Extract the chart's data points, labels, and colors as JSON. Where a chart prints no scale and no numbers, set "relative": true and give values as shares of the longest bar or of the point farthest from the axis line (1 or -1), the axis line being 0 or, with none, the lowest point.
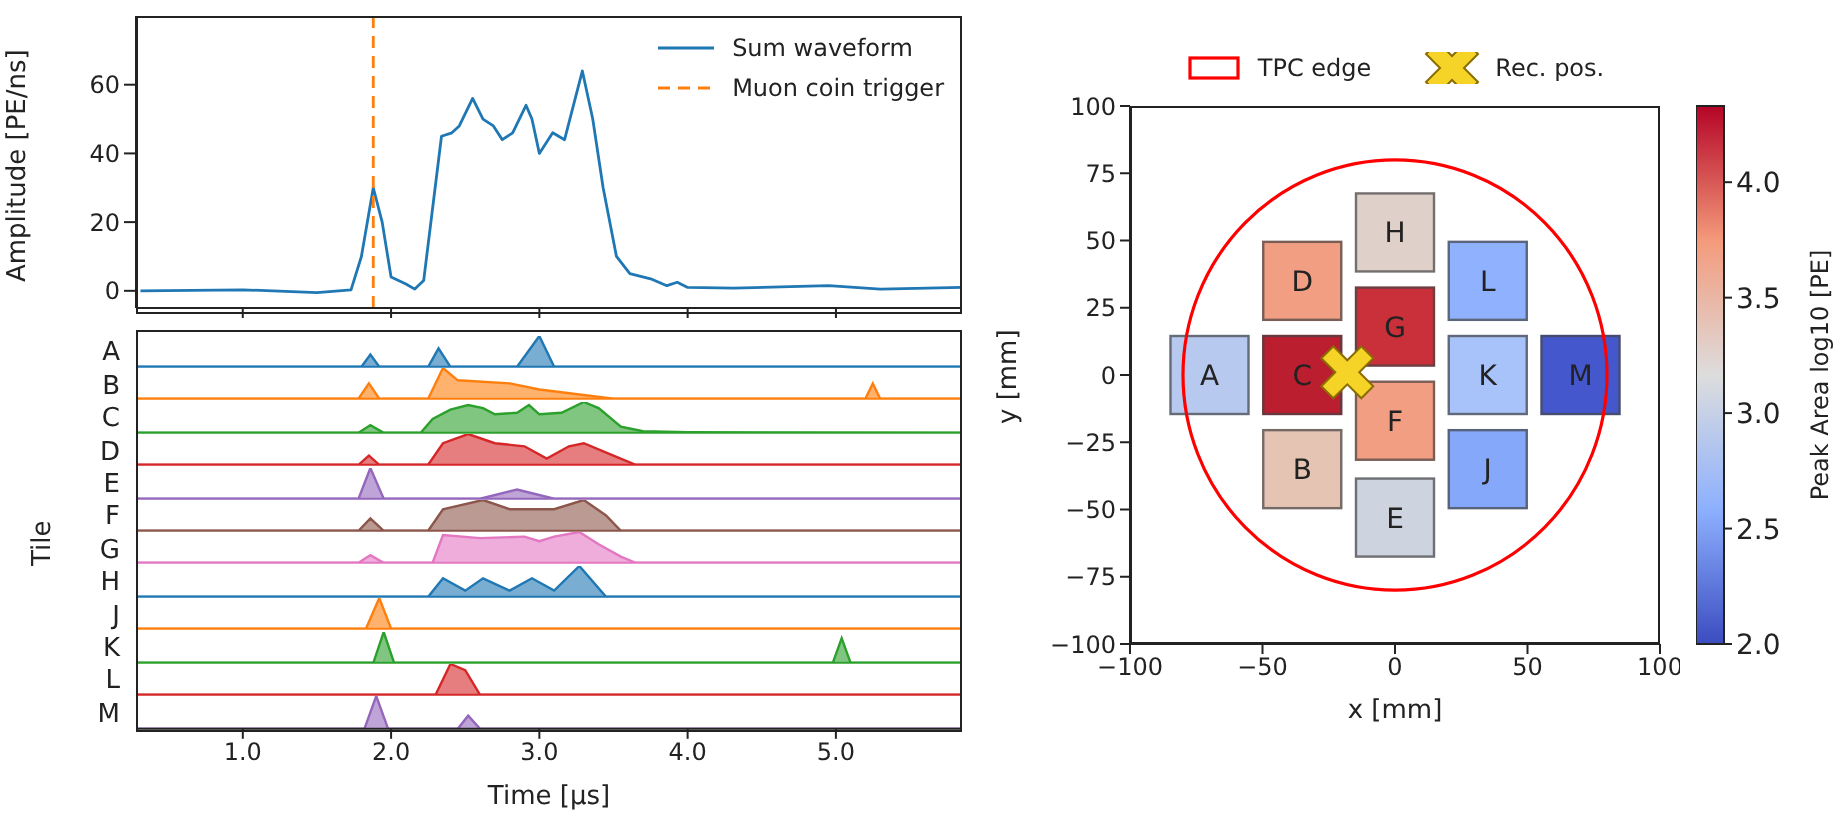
{
  "chart_data": [
    {
      "type": "line",
      "ylabel": "Amplitude [PE/ns]",
      "xlim": [
        0.28,
        5.85
      ],
      "xticks": [
        {
          "value": 1,
          "label": null
        },
        {
          "value": 2,
          "label": null
        },
        {
          "value": 3,
          "label": null
        },
        {
          "value": 4,
          "label": null
        },
        {
          "value": 5,
          "label": null
        }
      ],
      "ylim": [
        -5,
        80
      ],
      "yticks": [
        0,
        20,
        40,
        60
      ],
      "tick_labels": "y",
      "legend": "top right",
      "x": [
        0.31,
        1.0,
        1.5,
        1.73,
        1.8,
        1.88,
        1.94,
        2.0,
        2.1,
        2.16,
        2.22,
        2.34,
        2.41,
        2.46,
        2.55,
        2.62,
        2.69,
        2.75,
        2.82,
        2.91,
        2.95,
        3.0,
        3.09,
        3.17,
        3.29,
        3.36,
        3.43,
        3.52,
        3.61,
        3.75,
        3.86,
        3.93,
        4.0,
        4.31,
        4.95,
        5.3,
        5.85
      ],
      "series": [
        {
          "name": "Sum waveform",
          "color": "#1f77b4",
          "values": [
            0,
            0.3,
            -0.5,
            0.3,
            10,
            30,
            20,
            4,
            2,
            0.5,
            3,
            45,
            46,
            48,
            56,
            50,
            48,
            44,
            46,
            54,
            50,
            40,
            46,
            44,
            64,
            50,
            30,
            10,
            5,
            3.5,
            1.5,
            2.5,
            1,
            0.8,
            1.5,
            0.5,
            1
          ]
        },
        {
          "name": "Muon coin trigger",
          "color": "#ff7f0e",
          "line_style": "dashed",
          "x": [
            1.88,
            1.88
          ],
          "values": [
            -5,
            80
          ]
        }
      ]
    },
    {
      "type": "area",
      "relative": true,
      "xlim": [
        0.28,
        5.85
      ],
      "tick_labels": false,
      "series": [
        {
          "name": "A",
          "color": "#1f77b4",
          "x": [
            0.28,
            1.8,
            1.86,
            1.92,
            2.25,
            2.32,
            2.4,
            2.85,
            3.0,
            3.1,
            5.85
          ],
          "values": [
            0,
            0,
            0.4,
            0,
            0,
            0.6,
            0,
            0,
            1,
            0,
            0
          ]
        }
      ]
    },
    {
      "type": "area",
      "relative": true,
      "xlim": [
        0.28,
        5.85
      ],
      "tick_labels": false,
      "series": [
        {
          "name": "B",
          "color": "#ff7f0e",
          "x": [
            0.28,
            1.78,
            1.85,
            1.92,
            2.25,
            2.35,
            2.45,
            2.8,
            3.0,
            3.5,
            5.2,
            5.25,
            5.3,
            5.85
          ],
          "values": [
            0,
            0,
            0.5,
            0,
            0,
            1,
            0.6,
            0.5,
            0.3,
            0,
            0,
            0.5,
            0,
            0
          ]
        }
      ]
    },
    {
      "type": "area",
      "relative": true,
      "xlim": [
        0.28,
        5.85
      ],
      "tick_labels": false,
      "series": [
        {
          "name": "C",
          "color": "#2ca02c",
          "x": [
            0.28,
            1.78,
            1.86,
            1.95,
            2.2,
            2.28,
            2.4,
            2.52,
            2.62,
            2.7,
            2.85,
            2.93,
            3.0,
            3.15,
            3.3,
            3.4,
            3.55,
            3.7,
            4.0,
            5.85
          ],
          "values": [
            0,
            0,
            0.25,
            0,
            0,
            0.45,
            0.75,
            0.9,
            0.8,
            0.6,
            0.65,
            0.9,
            0.6,
            0.65,
            1,
            0.8,
            0.2,
            0.05,
            0.02,
            0
          ]
        }
      ]
    },
    {
      "type": "area",
      "relative": true,
      "xlim": [
        0.28,
        5.85
      ],
      "tick_labels": false,
      "series": [
        {
          "name": "D",
          "color": "#d62728",
          "x": [
            0.28,
            1.78,
            1.85,
            1.92,
            2.25,
            2.35,
            2.52,
            2.7,
            2.9,
            3.05,
            3.2,
            3.3,
            3.5,
            3.65,
            5.85
          ],
          "values": [
            0,
            0,
            0.3,
            0,
            0,
            0.7,
            1,
            0.7,
            0.6,
            0.2,
            0.6,
            0.7,
            0.3,
            0,
            0
          ]
        }
      ]
    },
    {
      "type": "area",
      "relative": true,
      "xlim": [
        0.28,
        5.85
      ],
      "tick_labels": false,
      "series": [
        {
          "name": "E",
          "color": "#9467bd",
          "x": [
            0.28,
            1.78,
            1.86,
            1.95,
            2.6,
            2.85,
            3.1,
            3.3,
            5.85
          ],
          "values": [
            0,
            0,
            1,
            0,
            0,
            0.3,
            0,
            0,
            0
          ]
        }
      ]
    },
    {
      "type": "area",
      "relative": true,
      "xlim": [
        0.28,
        5.85
      ],
      "tick_labels": false,
      "series": [
        {
          "name": "F",
          "color": "#8c564b",
          "x": [
            0.28,
            1.78,
            1.86,
            1.95,
            2.25,
            2.35,
            2.62,
            2.8,
            3.1,
            3.3,
            3.45,
            3.55,
            5.85
          ],
          "values": [
            0,
            0,
            0.4,
            0,
            0,
            0.7,
            1,
            0.7,
            0.7,
            1,
            0.5,
            0,
            0
          ]
        }
      ]
    },
    {
      "type": "area",
      "relative": true,
      "ylabel": "Tile",
      "xlim": [
        0.28,
        5.85
      ],
      "tick_labels": false,
      "series": [
        {
          "name": "G",
          "color": "#e377c2",
          "x": [
            0.28,
            1.78,
            1.86,
            1.95,
            2.28,
            2.35,
            2.6,
            2.9,
            3.0,
            3.1,
            3.27,
            3.4,
            3.55,
            3.65,
            5.85
          ],
          "values": [
            0,
            0,
            0.25,
            0,
            0,
            0.9,
            0.8,
            0.85,
            0.7,
            0.85,
            1,
            0.6,
            0.2,
            0,
            0
          ]
        }
      ]
    },
    {
      "type": "area",
      "relative": true,
      "xlim": [
        0.28,
        5.85
      ],
      "tick_labels": false,
      "series": [
        {
          "name": "H",
          "color": "#1f77b4",
          "x": [
            0.28,
            2.25,
            2.35,
            2.5,
            2.62,
            2.8,
            2.95,
            3.1,
            3.27,
            3.45,
            5.85
          ],
          "values": [
            0,
            0,
            0.6,
            0.2,
            0.6,
            0.2,
            0.6,
            0.2,
            1,
            0,
            0
          ]
        }
      ]
    },
    {
      "type": "area",
      "relative": true,
      "xlim": [
        0.28,
        5.85
      ],
      "tick_labels": false,
      "series": [
        {
          "name": "J",
          "color": "#ff7f0e",
          "x": [
            0.28,
            1.83,
            1.92,
            2.0,
            5.85
          ],
          "values": [
            0,
            0,
            1,
            0,
            0
          ]
        }
      ]
    },
    {
      "type": "area",
      "relative": true,
      "xlim": [
        0.28,
        5.85
      ],
      "tick_labels": false,
      "series": [
        {
          "name": "K",
          "color": "#2ca02c",
          "x": [
            0.28,
            1.88,
            1.95,
            2.02,
            4.98,
            5.04,
            5.1,
            5.85
          ],
          "values": [
            0,
            0,
            1,
            0,
            0,
            0.8,
            0,
            0
          ]
        }
      ]
    },
    {
      "type": "area",
      "relative": true,
      "xlim": [
        0.28,
        5.85
      ],
      "tick_labels": false,
      "series": [
        {
          "name": "L",
          "color": "#d62728",
          "x": [
            0.28,
            2.3,
            2.4,
            2.5,
            2.6,
            5.85
          ],
          "values": [
            0,
            0,
            1,
            0.8,
            0,
            0
          ]
        }
      ]
    },
    {
      "type": "area",
      "relative": true,
      "xlabel": "Time [μs]",
      "xlim": [
        0.28,
        5.85
      ],
      "xticks": [
        {
          "value": 1,
          "label": "1.0"
        },
        {
          "value": 2,
          "label": "2.0"
        },
        {
          "value": 3,
          "label": "3.0"
        },
        {
          "value": 4,
          "label": "4.0"
        },
        {
          "value": 5,
          "label": "5.0"
        }
      ],
      "tick_labels": "x",
      "series": [
        {
          "name": "M",
          "color": "#9467bd",
          "x": [
            0.28,
            1.82,
            1.9,
            1.98,
            2.45,
            2.52,
            2.6,
            5.85
          ],
          "values": [
            0,
            0,
            1,
            0,
            0,
            0.4,
            0,
            0
          ]
        }
      ]
    },
    {
      "type": "scatter",
      "xlabel": "x [mm]",
      "ylabel": "y [mm]",
      "clabel": "Peak Area log10 [PE]",
      "xlim": [
        -100,
        100
      ],
      "ylim": [
        -100,
        100
      ],
      "xticks": [
        -100,
        -50,
        0,
        50,
        100
      ],
      "yticks": [
        -100,
        -75,
        -50,
        -25,
        0,
        25,
        50,
        75,
        100
      ],
      "clim": [
        2.0,
        4.33
      ],
      "cticks": [
        {
          "value": 2,
          "label": "2.0"
        },
        {
          "value": 2.5,
          "label": "2.5"
        },
        {
          "value": 3,
          "label": "3.0"
        },
        {
          "value": 3.5,
          "label": "3.5"
        },
        {
          "value": 4,
          "label": "4.0"
        }
      ],
      "legend": "top",
      "series": [
        {
          "type": "scatter",
          "marker": "square",
          "colors": [
            "#b7c9ee",
            "#e6c4b3",
            "#bb1e2f",
            "#f29e82",
            "#ced3e0",
            "#f29e82",
            "#c9303a",
            "#e0d0ca",
            "#86a8fb",
            "#a7c3f9",
            "#90b2fe",
            "#4557cd"
          ],
          "x": [
            -70,
            -35,
            -35,
            -35,
            0,
            0,
            0,
            0,
            35,
            35,
            35,
            70
          ],
          "values": [
            0,
            -35,
            0,
            35,
            -53,
            -17,
            18,
            53,
            -35,
            0,
            35,
            0
          ],
          "cvalues": [
            2.85,
            3.4,
            4.25,
            3.75,
            3.05,
            3.75,
            4.15,
            3.25,
            2.55,
            2.75,
            2.6,
            2.1
          ]
        },
        {
          "type": "scatter",
          "name": "Rec. pos.",
          "marker": "cross",
          "color": "#f5d327",
          "x": [
            -18
          ],
          "values": [
            1
          ]
        }
      ],
      "annotations": [
        "TPC edge",
        {
          "text": "A",
          "x": -70,
          "y": 0
        },
        {
          "text": "B",
          "x": -35,
          "y": -35
        },
        {
          "text": "C",
          "x": -35,
          "y": 0
        },
        {
          "text": "D",
          "x": -35,
          "y": 35
        },
        {
          "text": "E",
          "x": 0,
          "y": -53
        },
        {
          "text": "F",
          "x": 0,
          "y": -17
        },
        {
          "text": "G",
          "x": 0,
          "y": 18
        },
        {
          "text": "H",
          "x": 0,
          "y": 53
        },
        {
          "text": "J",
          "x": 35,
          "y": -35
        },
        {
          "text": "K",
          "x": 35,
          "y": 0
        },
        {
          "text": "L",
          "x": 35,
          "y": 35
        },
        {
          "text": "M",
          "x": 70,
          "y": 0
        }
      ]
    }
  ]
}
